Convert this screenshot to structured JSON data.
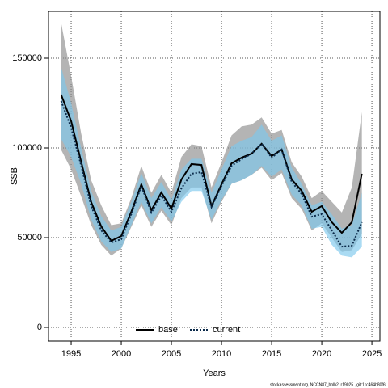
{
  "chart_data": {
    "type": "line",
    "x_label": "Years",
    "y_label": "SSB",
    "footer": "stockassessment.org, NCCN87_bolh2, r19025 , git:1cc464b80f6f",
    "x": [
      1994,
      1995,
      1996,
      1997,
      1998,
      1999,
      2000,
      2001,
      2002,
      2003,
      2004,
      2005,
      2006,
      2007,
      2008,
      2009,
      2010,
      2011,
      2012,
      2013,
      2014,
      2015,
      2016,
      2017,
      2018,
      2019,
      2020,
      2021,
      2022,
      2023,
      2024
    ],
    "series": [
      {
        "name": "base",
        "color": "#000000",
        "band_color": "#8c8c8c",
        "dashed": false,
        "values": [
          129700,
          114900,
          92300,
          69800,
          56300,
          48200,
          50900,
          64400,
          79700,
          65300,
          75200,
          66200,
          82400,
          91000,
          90500,
          67600,
          79700,
          91400,
          94600,
          96800,
          102300,
          95500,
          99100,
          82400,
          76100,
          64400,
          67600,
          58600,
          52700,
          58600,
          85600
        ],
        "upper": [
          169800,
          140000,
          108000,
          82000,
          68000,
          57000,
          58000,
          72000,
          90000,
          75000,
          85000,
          75000,
          95000,
          102000,
          101000,
          78000,
          92000,
          107000,
          112000,
          113000,
          117000,
          108000,
          110000,
          92000,
          84000,
          72000,
          76000,
          70000,
          64000,
          78000,
          120000
        ],
        "lower": [
          99000,
          88000,
          73000,
          57000,
          46000,
          40000,
          44000,
          56000,
          68000,
          56000,
          65000,
          57000,
          72000,
          78000,
          78000,
          58000,
          70000,
          80000,
          82000,
          85000,
          89000,
          82000,
          86000,
          72000,
          66000,
          54000,
          58000,
          50000,
          42000,
          43000,
          52000
        ]
      },
      {
        "name": "current",
        "color": "#0b2a4a",
        "band_color": "#7cc7ec",
        "dashed": true,
        "values": [
          126100,
          111300,
          90100,
          67600,
          54100,
          47300,
          49100,
          63100,
          78800,
          64000,
          73400,
          64400,
          77500,
          85600,
          86500,
          67100,
          78800,
          90100,
          93700,
          96800,
          102300,
          94600,
          99100,
          81100,
          74300,
          61700,
          63100,
          54100,
          45000,
          45500,
          58600
        ],
        "upper": [
          145000,
          125000,
          100000,
          76000,
          62000,
          54000,
          56000,
          70000,
          86000,
          72000,
          81000,
          71000,
          88000,
          94000,
          94000,
          75000,
          88000,
          101000,
          104000,
          106000,
          113000,
          104000,
          107000,
          89000,
          80000,
          68000,
          70000,
          63000,
          55000,
          57000,
          75000
        ],
        "lower": [
          105000,
          95000,
          80000,
          60000,
          48000,
          42000,
          44000,
          57000,
          70000,
          58000,
          67000,
          59000,
          70000,
          76000,
          76000,
          60000,
          71000,
          80000,
          82000,
          85000,
          90000,
          84000,
          88000,
          74000,
          68000,
          55000,
          56000,
          46000,
          40000,
          39000,
          45000
        ]
      }
    ],
    "xlim": [
      1992.74,
      2025.8
    ],
    "ylim": [
      -7658,
      176126
    ],
    "xticks": [
      1995,
      2000,
      2005,
      2010,
      2015,
      2020,
      2025
    ],
    "yticks": [
      0,
      50000,
      100000,
      150000
    ],
    "grid": true,
    "legend": "bottom"
  }
}
